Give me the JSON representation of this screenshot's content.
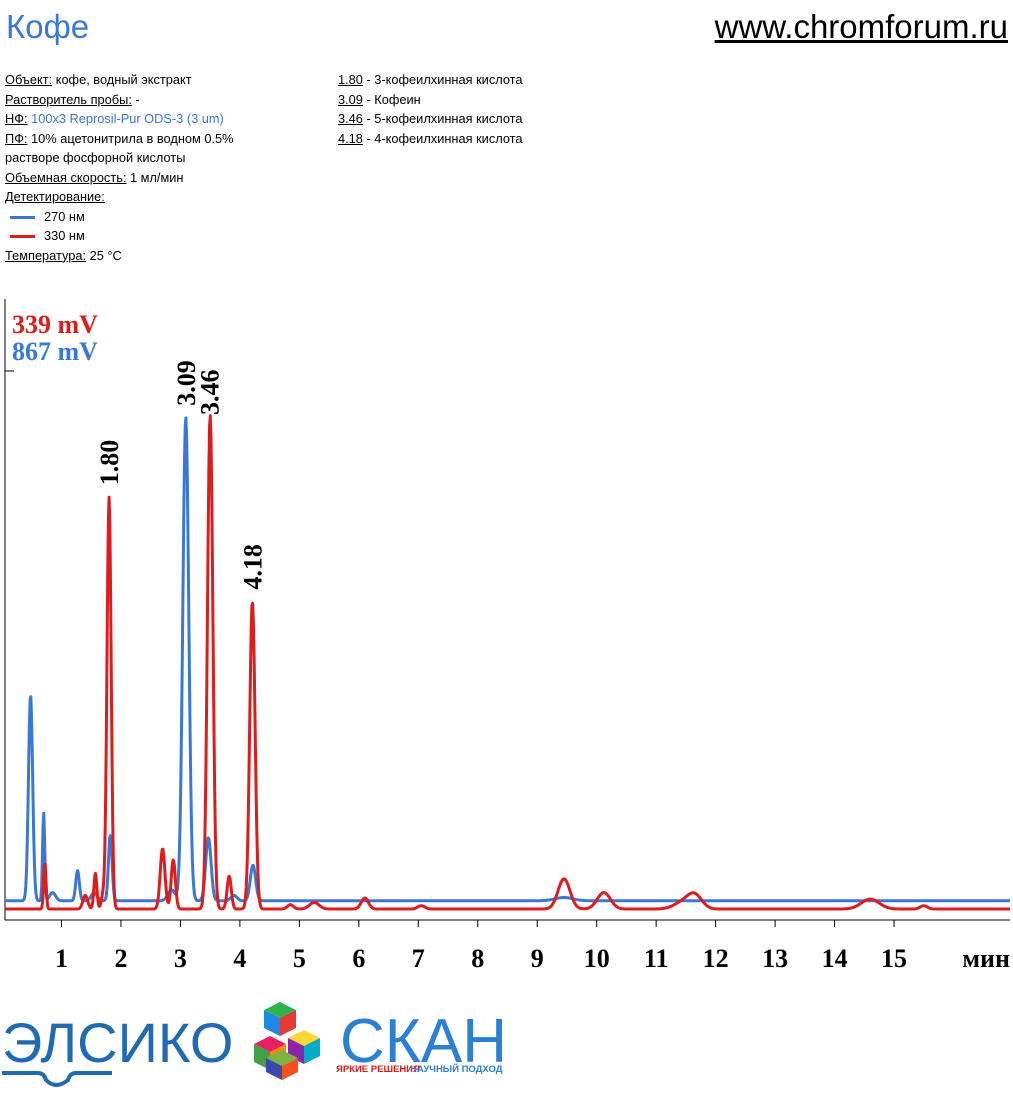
{
  "header": {
    "title": "Кофе",
    "site": "www.chromforum.ru"
  },
  "conditions": {
    "object_label": "Объект:",
    "object_value": " кофе, водный экстракт",
    "solvent_label": "Растворитель пробы:",
    "solvent_value": " -",
    "sp_label": "НФ:",
    "sp_value": " 100x3 Reprosil-Pur ODS-3 (3 um)",
    "mp_label": "ПФ:",
    "mp_value1": " 10% ацетонитрила в водном 0.5%",
    "mp_value2": "растворе фосфорной кислоты",
    "flow_label": "Объемная скорость:",
    "flow_value": " 1 мл/мин",
    "detect_label": "Детектирование:",
    "detect1": "270 нм",
    "detect1_color": "#3a78d8",
    "detect2": "330 нм",
    "detect2_color": "#e01b1b",
    "temp_label": "Температура:",
    "temp_value": " 25 °C"
  },
  "peaks": [
    {
      "rt": "1.80",
      "name": " - 3-кофеилхинная кислота"
    },
    {
      "rt": "3.09",
      "name": " - Кофеин"
    },
    {
      "rt": "3.46",
      "name": " - 5-кофеилхинная кислота"
    },
    {
      "rt": "4.18",
      "name": " - 4-кофеилхинная кислота"
    }
  ],
  "logos": {
    "elsiko": "ЭЛСИКО",
    "scan": "СКАН",
    "tag_red": "ЯРКИЕ РЕШЕНИЯ",
    "tag_blue": "НАУЧНЫЙ ПОДХОД"
  },
  "chart_data": {
    "type": "line",
    "xlabel": "мин",
    "xlim": [
      0.05,
      16.95
    ],
    "x_ticks": [
      1,
      2,
      3,
      4,
      5,
      6,
      7,
      8,
      9,
      10,
      11,
      12,
      13,
      14,
      15
    ],
    "fullscale_labels": [
      "339 mV",
      "867 mV"
    ],
    "fullscale_colors": [
      "#e01b1b",
      "#3a78d8"
    ],
    "peak_labels": [
      {
        "text": "1.80",
        "x": 1.8,
        "series": "330 нм"
      },
      {
        "text": "3.09",
        "x": 3.09,
        "series": "270 нм"
      },
      {
        "text": "3.46",
        "x": 3.49,
        "series": "330 нм"
      },
      {
        "text": "4.18",
        "x": 4.21,
        "series": "330 нм"
      }
    ],
    "series": [
      {
        "name": "270 нм",
        "color": "#3a78d8",
        "scale_mv": 867,
        "baseline": 3.5,
        "peaks": [
          [
            0.48,
            37.5,
            0.035
          ],
          [
            0.7,
            16.0,
            0.018
          ],
          [
            0.85,
            1.5,
            0.05
          ],
          [
            1.27,
            5.5,
            0.03
          ],
          [
            1.55,
            1.5,
            0.05
          ],
          [
            1.82,
            12.0,
            0.03
          ],
          [
            2.85,
            2.0,
            0.06
          ],
          [
            3.09,
            88.0,
            0.05
          ],
          [
            3.47,
            11.5,
            0.045
          ],
          [
            3.9,
            1.0,
            0.05
          ],
          [
            4.22,
            6.5,
            0.045
          ],
          [
            9.45,
            0.6,
            0.15
          ]
        ]
      },
      {
        "name": "330 нм",
        "color": "#e01b1b",
        "scale_mv": 339,
        "baseline": 2.0,
        "peaks": [
          [
            0.72,
            8.5,
            0.02
          ],
          [
            1.4,
            2.5,
            0.04
          ],
          [
            1.57,
            6.5,
            0.025
          ],
          [
            1.7,
            2.5,
            0.03
          ],
          [
            1.8,
            75.0,
            0.035
          ],
          [
            2.7,
            11.0,
            0.04
          ],
          [
            2.88,
            9.0,
            0.035
          ],
          [
            3.5,
            90.0,
            0.045
          ],
          [
            3.82,
            6.0,
            0.035
          ],
          [
            4.21,
            56.0,
            0.045
          ],
          [
            4.85,
            0.8,
            0.05
          ],
          [
            5.25,
            1.2,
            0.08
          ],
          [
            6.1,
            2.0,
            0.06
          ],
          [
            7.05,
            0.6,
            0.06
          ],
          [
            9.45,
            5.5,
            0.1
          ],
          [
            10.12,
            3.0,
            0.11
          ],
          [
            11.45,
            1.2,
            0.15
          ],
          [
            11.65,
            2.4,
            0.12
          ],
          [
            14.6,
            1.8,
            0.15
          ],
          [
            15.5,
            0.6,
            0.06
          ]
        ]
      }
    ]
  }
}
